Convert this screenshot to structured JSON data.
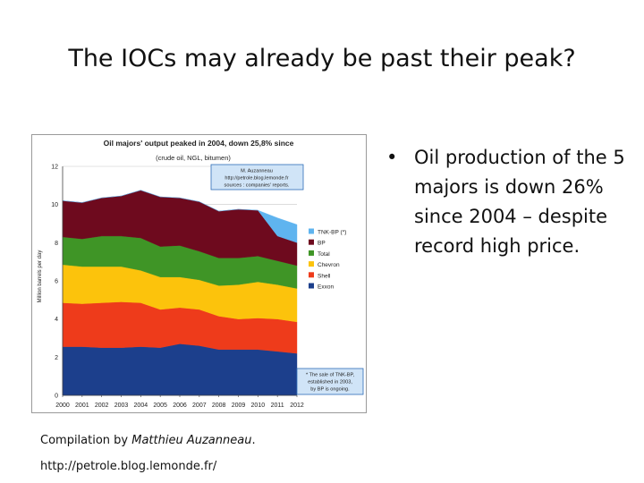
{
  "slide": {
    "title": "The IOCs may already be past their peak?",
    "bullets": [
      "Oil production of the 5 majors is down 26% since 2004 – despite record high price."
    ],
    "caption_prefix": "Compilation by ",
    "caption_author": "Matthieu Auzanneau",
    "caption_suffix": ".",
    "source_url": "http://petrole.blog.lemonde.fr/"
  },
  "chart_data": {
    "type": "area",
    "stacked": true,
    "title": "Oil majors' output peaked in 2004, down 25,8% since",
    "subtitle": "(crude oil, NGL, bitumen)",
    "xlabel": "",
    "ylabel": "Million barrels per day",
    "x": [
      "2000",
      "2001",
      "2002",
      "2003",
      "2004",
      "2005",
      "2006",
      "2007",
      "2008",
      "2009",
      "2010",
      "2011",
      "2012"
    ],
    "ylim": [
      0,
      12
    ],
    "yticks": [
      "0",
      "2",
      "4",
      "6",
      "8",
      "10",
      "12"
    ],
    "grid": true,
    "legend_position": "right",
    "series": [
      {
        "name": "Exxon",
        "color": "#1c3f8c",
        "values": [
          2.55,
          2.55,
          2.5,
          2.5,
          2.55,
          2.5,
          2.7,
          2.6,
          2.4,
          2.4,
          2.4,
          2.3,
          2.2
        ]
      },
      {
        "name": "Shell",
        "color": "#ee3b1b",
        "values": [
          2.3,
          2.25,
          2.35,
          2.4,
          2.3,
          2.0,
          1.9,
          1.9,
          1.75,
          1.6,
          1.65,
          1.7,
          1.65
        ]
      },
      {
        "name": "Chevron",
        "color": "#fcc30c",
        "values": [
          2.0,
          1.95,
          1.9,
          1.85,
          1.7,
          1.7,
          1.6,
          1.55,
          1.6,
          1.8,
          1.9,
          1.8,
          1.75
        ]
      },
      {
        "name": "Total",
        "color": "#3f9526",
        "values": [
          1.45,
          1.45,
          1.6,
          1.6,
          1.7,
          1.6,
          1.65,
          1.5,
          1.45,
          1.4,
          1.35,
          1.25,
          1.2
        ]
      },
      {
        "name": "BP",
        "color": "#6e0a1e",
        "values": [
          1.9,
          1.9,
          2.0,
          2.1,
          2.5,
          2.6,
          2.5,
          2.6,
          2.45,
          2.55,
          2.4,
          1.3,
          1.2
        ]
      },
      {
        "name": "TNK-BP (*)",
        "color": "#5fb4ef",
        "values": [
          0,
          0,
          0,
          0,
          0,
          0,
          0,
          0,
          0,
          0,
          0,
          0.95,
          0.95
        ]
      }
    ],
    "annotations": {
      "credit_lines": [
        "M. Auzanneau",
        "http://petrole.blog.lemonde.fr",
        "sources : companies' reports."
      ],
      "footnote_lines": [
        "* The sale of TNK-BP,",
        "established in 2003,",
        "by BP is ongoing."
      ]
    },
    "colors": {
      "annotation_box": "#d0e4f7",
      "annotation_border": "#2e6db8",
      "plot_border": "#444444"
    }
  }
}
